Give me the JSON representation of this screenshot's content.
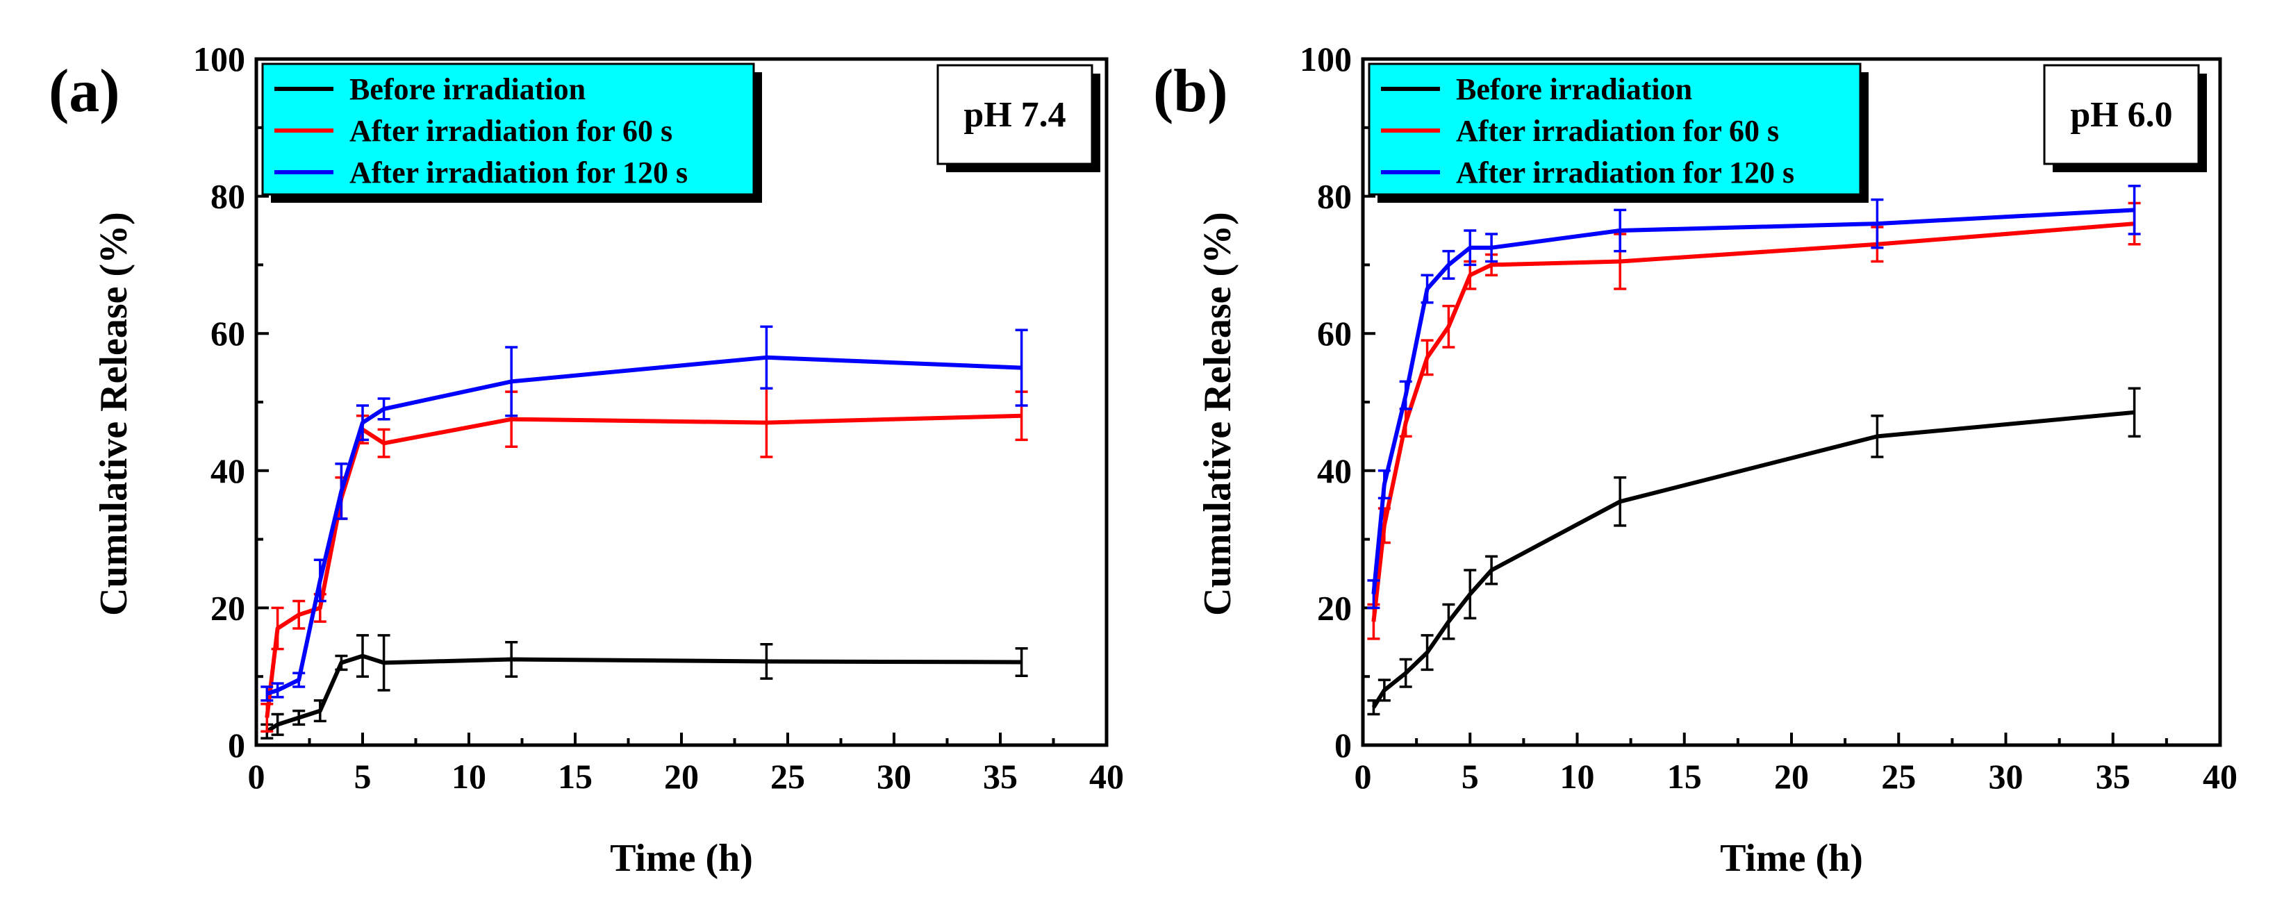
{
  "chart_data": [
    {
      "type": "line",
      "panel_label": "(a)",
      "condition": "pH 7.4",
      "xlabel": "Time (h)",
      "ylabel": "Cumulative Release (%)",
      "xlim": [
        0,
        40
      ],
      "ylim": [
        0,
        100
      ],
      "xticks": [
        0,
        5,
        10,
        15,
        20,
        25,
        30,
        35,
        40
      ],
      "yticks": [
        0,
        20,
        40,
        60,
        80,
        100
      ],
      "legend_position": "top-left",
      "series": [
        {
          "name": "Before irradiation",
          "color": "#000000",
          "x": [
            0.5,
            1,
            2,
            3,
            4,
            5,
            6,
            12,
            24,
            36
          ],
          "y": [
            2,
            3,
            4,
            5,
            12,
            13,
            12,
            12.5,
            12.2,
            12.1
          ],
          "err": [
            1,
            1.5,
            1,
            1.5,
            1,
            3,
            4,
            2.5,
            2.5,
            2
          ]
        },
        {
          "name": "After irradiation for 60 s",
          "color": "#ff0000",
          "x": [
            0.5,
            1,
            2,
            3,
            4,
            5,
            6,
            12,
            24,
            36
          ],
          "y": [
            4,
            17,
            19,
            20,
            36,
            46,
            44,
            47.5,
            47,
            48
          ],
          "err": [
            2,
            3,
            2,
            2,
            3,
            2,
            2,
            4,
            5,
            3.5
          ]
        },
        {
          "name": "After irradiation for 120 s",
          "color": "#0000ff",
          "x": [
            0.5,
            1,
            2,
            3,
            4,
            5,
            6,
            12,
            24,
            36
          ],
          "y": [
            7.5,
            8,
            9.5,
            24,
            37,
            47,
            49,
            53,
            56.5,
            55
          ],
          "err": [
            1,
            1,
            1,
            3,
            4,
            2.5,
            1.5,
            5,
            4.5,
            5.5
          ]
        }
      ]
    },
    {
      "type": "line",
      "panel_label": "(b)",
      "condition": "pH 6.0",
      "xlabel": "Time (h)",
      "ylabel": "Cumulative Release (%)",
      "xlim": [
        0,
        40
      ],
      "ylim": [
        0,
        100
      ],
      "xticks": [
        0,
        5,
        10,
        15,
        20,
        25,
        30,
        35,
        40
      ],
      "yticks": [
        0,
        20,
        40,
        60,
        80,
        100
      ],
      "legend_position": "top-left",
      "series": [
        {
          "name": "Before irradiation",
          "color": "#000000",
          "x": [
            0.5,
            1,
            2,
            3,
            4,
            5,
            6,
            12,
            24,
            36
          ],
          "y": [
            5.5,
            8,
            10.5,
            13.5,
            18,
            22,
            25.5,
            35.5,
            45,
            48.5
          ],
          "err": [
            1,
            1.5,
            2,
            2.5,
            2.5,
            3.5,
            2,
            3.5,
            3,
            3.5
          ]
        },
        {
          "name": "After irradiation for 60 s",
          "color": "#ff0000",
          "x": [
            0.5,
            1,
            2,
            3,
            4,
            5,
            6,
            12,
            24,
            36
          ],
          "y": [
            18,
            32,
            47,
            56.5,
            61,
            68.5,
            70,
            70.5,
            73,
            76
          ],
          "err": [
            2.5,
            2.5,
            2,
            2.5,
            3,
            2,
            1.5,
            4,
            2.5,
            3
          ]
        },
        {
          "name": "After irradiation for 120 s",
          "color": "#0000ff",
          "x": [
            0.5,
            1,
            2,
            3,
            4,
            5,
            6,
            12,
            24,
            36
          ],
          "y": [
            22,
            38,
            51,
            66.5,
            70,
            72.5,
            72.5,
            75,
            76,
            78
          ],
          "err": [
            2,
            2,
            2,
            2,
            2,
            2.5,
            2,
            3,
            3.5,
            3.5
          ]
        }
      ]
    }
  ]
}
